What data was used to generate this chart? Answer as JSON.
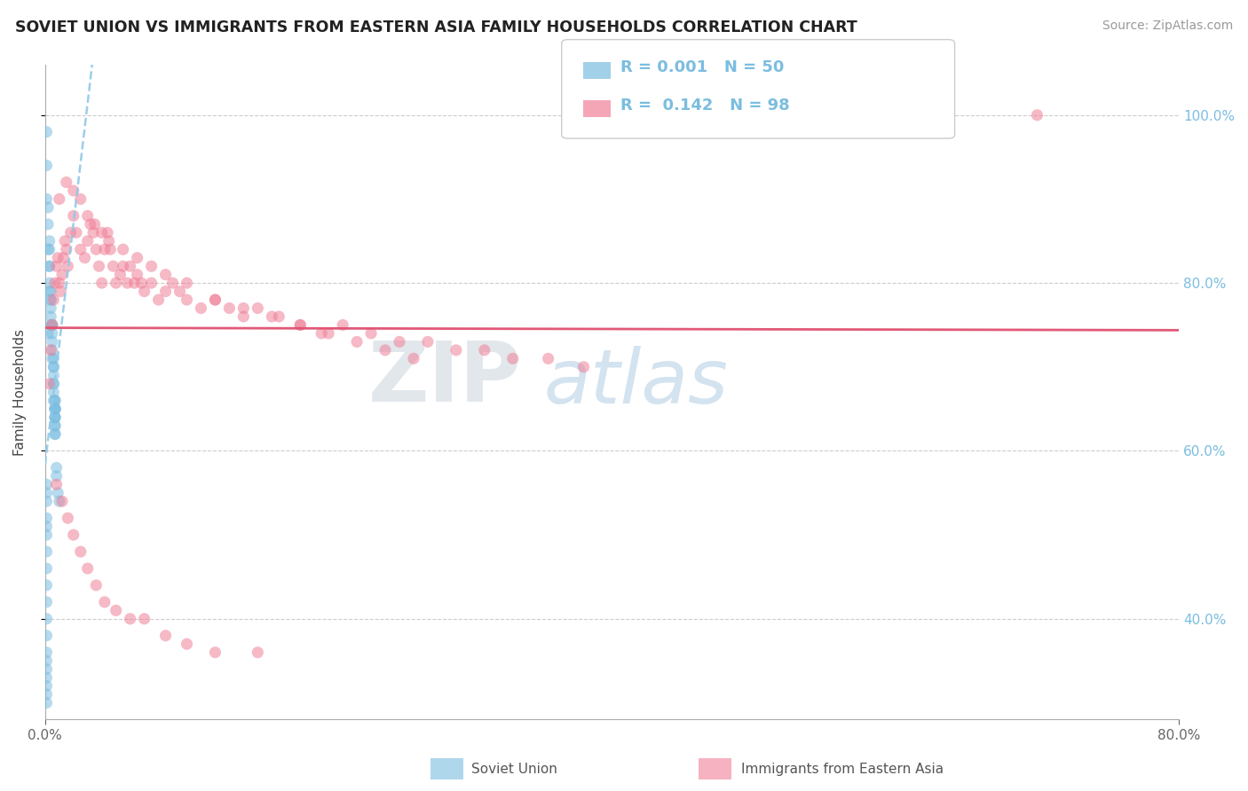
{
  "title": "SOVIET UNION VS IMMIGRANTS FROM EASTERN ASIA FAMILY HOUSEHOLDS CORRELATION CHART",
  "source_text": "Source: ZipAtlas.com",
  "ylabel": "Family Households",
  "xlim": [
    0.0,
    0.8
  ],
  "ylim": [
    0.28,
    1.06
  ],
  "yticks": [
    0.4,
    0.6,
    0.8,
    1.0
  ],
  "ytick_labels": [
    "40.0%",
    "60.0%",
    "80.0%",
    "100.0%"
  ],
  "blue_color": "#7bbde0",
  "pink_color": "#f08098",
  "blue_line_color": "#90c8e8",
  "pink_line_color": "#e05070",
  "watermark_zip": "ZIP",
  "watermark_atlas": "atlas",
  "soviet_x": [
    0.001,
    0.001,
    0.001,
    0.002,
    0.002,
    0.002,
    0.002,
    0.003,
    0.003,
    0.003,
    0.003,
    0.003,
    0.003,
    0.004,
    0.004,
    0.004,
    0.004,
    0.004,
    0.004,
    0.005,
    0.005,
    0.005,
    0.005,
    0.005,
    0.005,
    0.006,
    0.006,
    0.006,
    0.006,
    0.006,
    0.006,
    0.006,
    0.006,
    0.007,
    0.007,
    0.007,
    0.007,
    0.007,
    0.007,
    0.007,
    0.007,
    0.007,
    0.007,
    0.007,
    0.007,
    0.007,
    0.008,
    0.008,
    0.009,
    0.01
  ],
  "soviet_y": [
    0.98,
    0.94,
    0.9,
    0.89,
    0.87,
    0.84,
    0.74,
    0.85,
    0.84,
    0.82,
    0.82,
    0.8,
    0.79,
    0.79,
    0.78,
    0.78,
    0.77,
    0.76,
    0.75,
    0.75,
    0.75,
    0.74,
    0.73,
    0.72,
    0.71,
    0.71,
    0.7,
    0.7,
    0.69,
    0.68,
    0.68,
    0.67,
    0.66,
    0.66,
    0.66,
    0.65,
    0.65,
    0.65,
    0.65,
    0.64,
    0.64,
    0.64,
    0.63,
    0.63,
    0.62,
    0.62,
    0.58,
    0.57,
    0.55,
    0.54
  ],
  "soviet_y_low": [
    0.56,
    0.55,
    0.54,
    0.52,
    0.51,
    0.5,
    0.48,
    0.46,
    0.44,
    0.42,
    0.4,
    0.38,
    0.36,
    0.35,
    0.34,
    0.33,
    0.32,
    0.31,
    0.3
  ],
  "soviet_x_low": [
    0.001,
    0.001,
    0.001,
    0.001,
    0.001,
    0.001,
    0.001,
    0.001,
    0.001,
    0.001,
    0.001,
    0.001,
    0.001,
    0.001,
    0.001,
    0.001,
    0.001,
    0.001,
    0.001
  ],
  "eastern_asia_x": [
    0.003,
    0.004,
    0.005,
    0.006,
    0.007,
    0.008,
    0.009,
    0.01,
    0.011,
    0.012,
    0.013,
    0.014,
    0.015,
    0.016,
    0.018,
    0.02,
    0.022,
    0.025,
    0.028,
    0.03,
    0.032,
    0.034,
    0.036,
    0.038,
    0.04,
    0.042,
    0.044,
    0.046,
    0.048,
    0.05,
    0.053,
    0.055,
    0.058,
    0.06,
    0.063,
    0.065,
    0.068,
    0.07,
    0.075,
    0.08,
    0.085,
    0.09,
    0.095,
    0.1,
    0.11,
    0.12,
    0.13,
    0.14,
    0.15,
    0.165,
    0.18,
    0.195,
    0.21,
    0.23,
    0.25,
    0.27,
    0.29,
    0.31,
    0.33,
    0.355,
    0.38,
    0.01,
    0.015,
    0.02,
    0.025,
    0.03,
    0.035,
    0.04,
    0.045,
    0.055,
    0.065,
    0.075,
    0.085,
    0.1,
    0.12,
    0.14,
    0.16,
    0.18,
    0.2,
    0.22,
    0.24,
    0.26,
    0.008,
    0.012,
    0.016,
    0.02,
    0.025,
    0.03,
    0.036,
    0.042,
    0.05,
    0.06,
    0.07,
    0.085,
    0.1,
    0.12,
    0.15,
    0.7
  ],
  "eastern_asia_y": [
    0.68,
    0.72,
    0.75,
    0.78,
    0.8,
    0.82,
    0.83,
    0.8,
    0.79,
    0.81,
    0.83,
    0.85,
    0.84,
    0.82,
    0.86,
    0.88,
    0.86,
    0.84,
    0.83,
    0.85,
    0.87,
    0.86,
    0.84,
    0.82,
    0.8,
    0.84,
    0.86,
    0.84,
    0.82,
    0.8,
    0.81,
    0.82,
    0.8,
    0.82,
    0.8,
    0.81,
    0.8,
    0.79,
    0.8,
    0.78,
    0.79,
    0.8,
    0.79,
    0.78,
    0.77,
    0.78,
    0.77,
    0.76,
    0.77,
    0.76,
    0.75,
    0.74,
    0.75,
    0.74,
    0.73,
    0.73,
    0.72,
    0.72,
    0.71,
    0.71,
    0.7,
    0.9,
    0.92,
    0.91,
    0.9,
    0.88,
    0.87,
    0.86,
    0.85,
    0.84,
    0.83,
    0.82,
    0.81,
    0.8,
    0.78,
    0.77,
    0.76,
    0.75,
    0.74,
    0.73,
    0.72,
    0.71,
    0.56,
    0.54,
    0.52,
    0.5,
    0.48,
    0.46,
    0.44,
    0.42,
    0.41,
    0.4,
    0.4,
    0.38,
    0.37,
    0.36,
    0.36,
    1.0
  ]
}
